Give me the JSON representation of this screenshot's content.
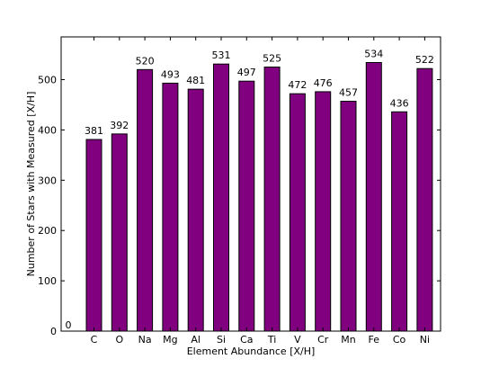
{
  "chart_data": {
    "type": "bar",
    "xlabel": "Element Abundance [X/H]",
    "ylabel": "Number of Stars with Measured [X/H]",
    "categories": [
      "C",
      "O",
      "Na",
      "Mg",
      "Al",
      "Si",
      "Ca",
      "Ti",
      "V",
      "Cr",
      "Mn",
      "Fe",
      "Co",
      "Ni"
    ],
    "values": [
      381,
      392,
      520,
      493,
      481,
      531,
      497,
      525,
      472,
      476,
      457,
      534,
      436,
      522
    ],
    "data_labels": [
      "381",
      "392",
      "520",
      "493",
      "481",
      "531",
      "497",
      "525",
      "472",
      "476",
      "457",
      "534",
      "436",
      "522"
    ],
    "ylim": [
      0,
      585
    ],
    "yticks": [
      0,
      100,
      200,
      300,
      400,
      500
    ],
    "ytick_labels": [
      "0",
      "100",
      "200",
      "300",
      "400",
      "500"
    ],
    "extra_label": "0",
    "grid": false,
    "bar_color": "#800080",
    "edge_color": "#000000"
  }
}
